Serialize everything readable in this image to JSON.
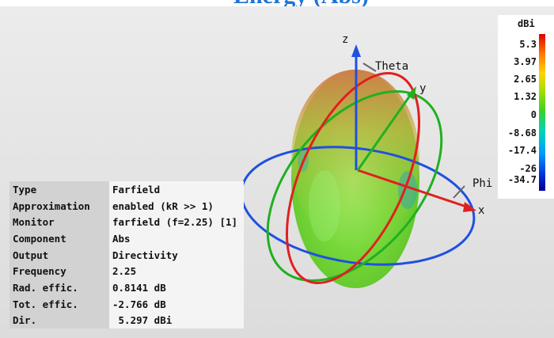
{
  "banner": {
    "text": "Energy (Abs)"
  },
  "axes": {
    "z": "z",
    "y": "y",
    "x": "x",
    "theta": "Theta",
    "phi": "Phi"
  },
  "legend": {
    "unit": "dBi",
    "ticks": [
      "5.3",
      "3.97",
      "2.65",
      "1.32",
      "0",
      "-8.68",
      "-17.4",
      "-26",
      "-34.7"
    ]
  },
  "info": [
    {
      "key": "Type",
      "value": "Farfield"
    },
    {
      "key": "Approximation",
      "value": "enabled (kR >> 1)"
    },
    {
      "key": "Monitor",
      "value": "farfield (f=2.25) [1]"
    },
    {
      "key": "Component",
      "value": "Abs"
    },
    {
      "key": "Output",
      "value": "Directivity"
    },
    {
      "key": "Frequency",
      "value": "2.25"
    },
    {
      "key": "Rad. effic.",
      "value": "0.8141 dB"
    },
    {
      "key": "Tot. effic.",
      "value": "-2.766 dB"
    },
    {
      "key": "Dir.",
      "value": " 5.297 dBi"
    }
  ],
  "colors": {
    "x_axis": "#e02020",
    "y_axis": "#20b020",
    "z_axis": "#2050e0",
    "banner_text": "#1f73d6"
  }
}
